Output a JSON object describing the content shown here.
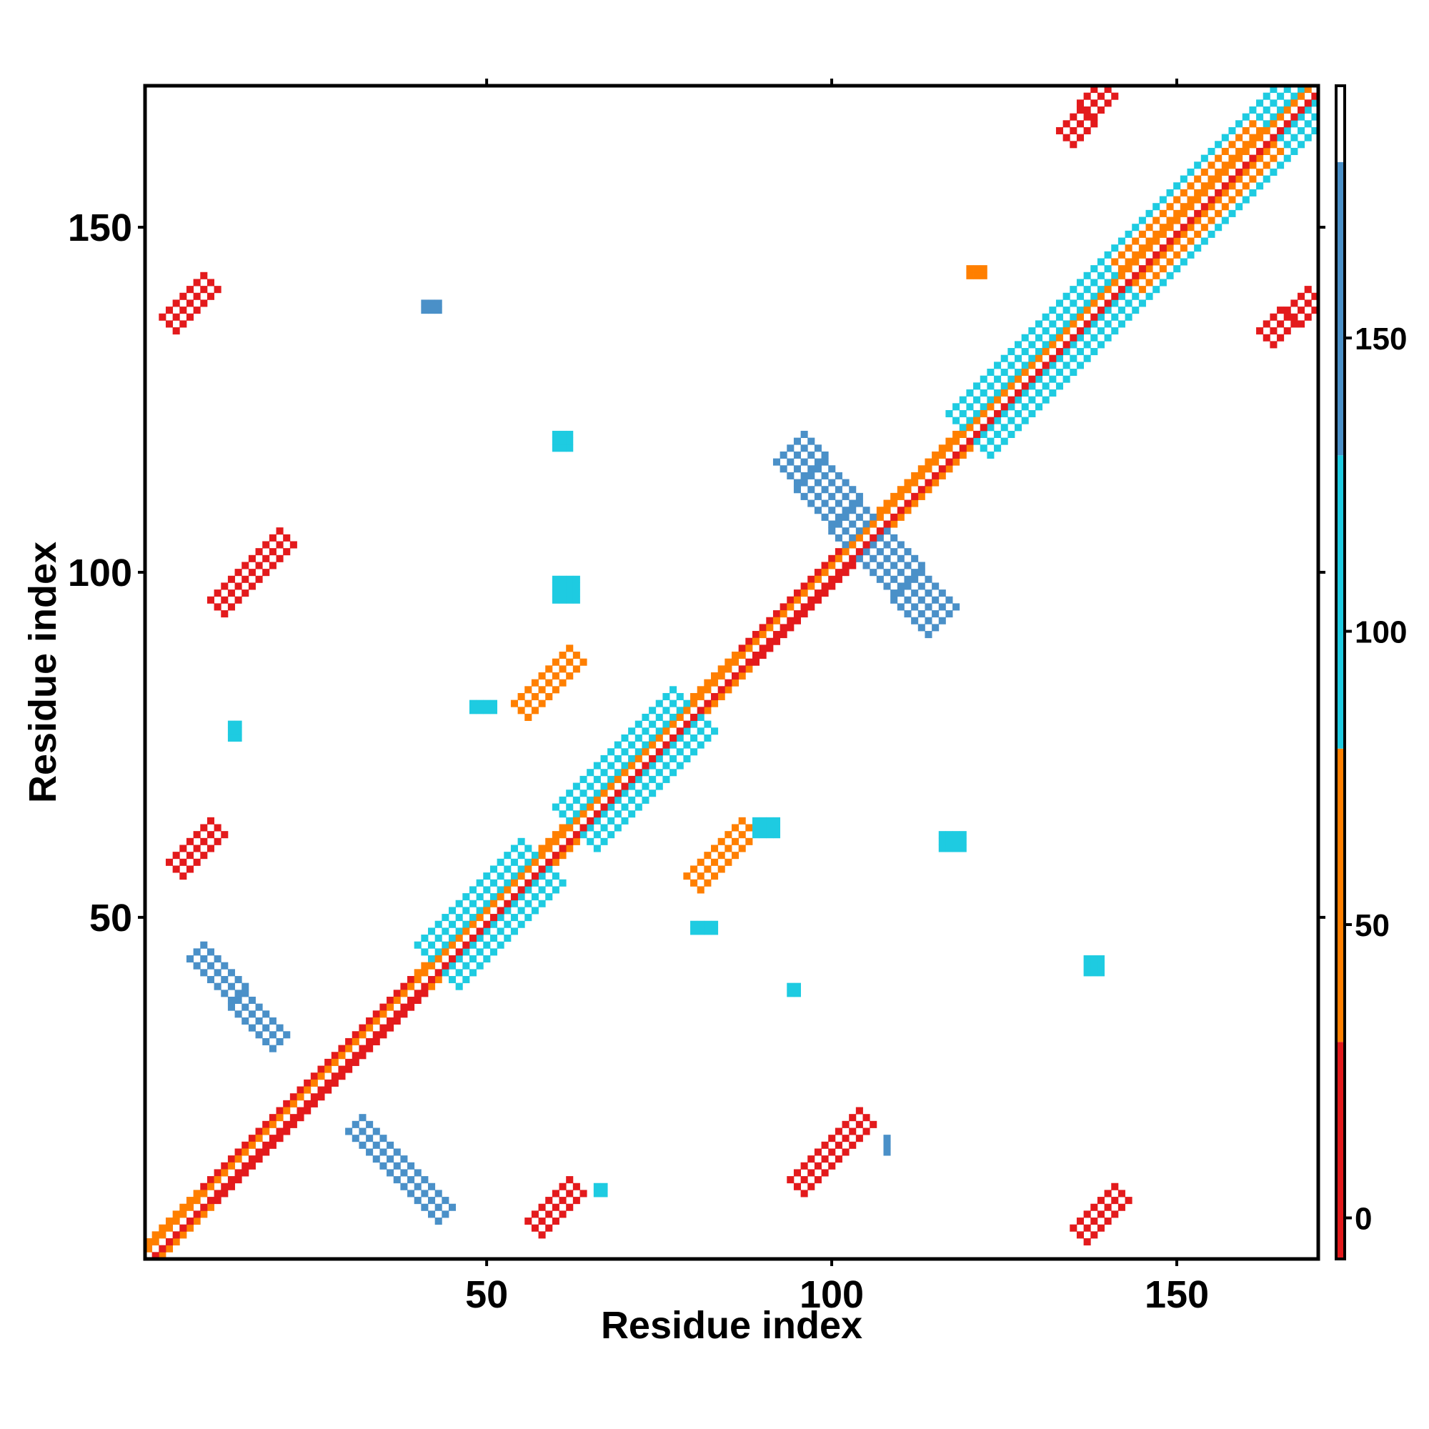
{
  "chart_data": {
    "type": "heatmap",
    "title": "",
    "xlabel": "Residue index",
    "ylabel": "Residue index",
    "xlim": [
      0.5,
      170.5
    ],
    "ylim": [
      0.5,
      170.5
    ],
    "xticks": [
      50,
      100,
      150
    ],
    "yticks": [
      50,
      100,
      150
    ],
    "colorbar": {
      "ticks": [
        0,
        50,
        100,
        150
      ],
      "range": [
        -7,
        193
      ],
      "bands": [
        {
          "from": -7,
          "to": 30,
          "color": "#e31a1c"
        },
        {
          "from": 30,
          "to": 80,
          "color": "#ff7f00"
        },
        {
          "from": 80,
          "to": 130,
          "color": "#1ecbe1"
        },
        {
          "from": 130,
          "to": 180,
          "color": "#4a90c8"
        },
        {
          "from": 180,
          "to": 193,
          "color": "#ffffff"
        }
      ]
    },
    "grid": false,
    "legend": "colorbar-right",
    "features": [
      {
        "kind": "diagonal",
        "from": [
          1,
          1
        ],
        "to": [
          170,
          170
        ],
        "width": 3,
        "value": 40
      },
      {
        "kind": "diagonal",
        "from": [
          2,
          1
        ],
        "to": [
          170,
          169
        ],
        "width": 1,
        "value": 10
      },
      {
        "kind": "diagonal",
        "from": [
          1,
          2
        ],
        "to": [
          169,
          170
        ],
        "width": 1,
        "value": 55
      },
      {
        "kind": "diagonal",
        "from": [
          43,
          43
        ],
        "to": [
          58,
          58
        ],
        "width": 7,
        "value": 100
      },
      {
        "kind": "diagonal",
        "from": [
          63,
          63
        ],
        "to": [
          80,
          80
        ],
        "width": 7,
        "value": 100
      },
      {
        "kind": "diagonal",
        "from": [
          120,
          120
        ],
        "to": [
          170,
          170
        ],
        "width": 6,
        "value": 95
      },
      {
        "kind": "diagonal",
        "from": [
          143,
          143
        ],
        "to": [
          163,
          163
        ],
        "width": 5,
        "value": 55
      },
      {
        "kind": "diagonal",
        "from": [
          88,
          88
        ],
        "to": [
          104,
          104
        ],
        "width": 3,
        "value": 8
      },
      {
        "kind": "diagonal",
        "from": [
          10,
          10
        ],
        "to": [
          40,
          40
        ],
        "width": 2,
        "value": 8
      },
      {
        "kind": "antidiagonal",
        "from": [
          8,
          45
        ],
        "to": [
          20,
          32
        ],
        "width": 3,
        "value": 150
      },
      {
        "kind": "antidiagonal",
        "from": [
          31,
          20
        ],
        "to": [
          44,
          7
        ],
        "width": 3,
        "value": 150
      },
      {
        "kind": "antidiagonal",
        "from": [
          94,
          118
        ],
        "to": [
          104,
          106
        ],
        "width": 4,
        "value": 150
      },
      {
        "kind": "antidiagonal",
        "from": [
          106,
          104
        ],
        "to": [
          116,
          93
        ],
        "width": 4,
        "value": 150
      },
      {
        "kind": "diagonal",
        "from": [
          4,
          136
        ],
        "to": [
          10,
          142
        ],
        "width": 3,
        "value": 8
      },
      {
        "kind": "diagonal",
        "from": [
          136,
          4
        ],
        "to": [
          142,
          10
        ],
        "width": 3,
        "value": 8
      },
      {
        "kind": "diagonal",
        "from": [
          5,
          57
        ],
        "to": [
          11,
          63
        ],
        "width": 3,
        "value": 8
      },
      {
        "kind": "diagonal",
        "from": [
          57,
          5
        ],
        "to": [
          63,
          11
        ],
        "width": 3,
        "value": 8
      },
      {
        "kind": "diagonal",
        "from": [
          11,
          95
        ],
        "to": [
          21,
          105
        ],
        "width": 3,
        "value": 25
      },
      {
        "kind": "diagonal",
        "from": [
          95,
          11
        ],
        "to": [
          105,
          21
        ],
        "width": 3,
        "value": 25
      },
      {
        "kind": "diagonal",
        "from": [
          55,
          80
        ],
        "to": [
          63,
          88
        ],
        "width": 3,
        "value": 45
      },
      {
        "kind": "diagonal",
        "from": [
          80,
          55
        ],
        "to": [
          88,
          63
        ],
        "width": 3,
        "value": 45
      },
      {
        "kind": "diagonal",
        "from": [
          134,
          163
        ],
        "to": [
          137,
          166
        ],
        "width": 2,
        "value": 8
      },
      {
        "kind": "diagonal",
        "from": [
          163,
          134
        ],
        "to": [
          166,
          137
        ],
        "width": 2,
        "value": 8
      },
      {
        "kind": "diagonal",
        "from": [
          167,
          137
        ],
        "to": [
          170,
          140
        ],
        "width": 2,
        "value": 8
      },
      {
        "kind": "diagonal",
        "from": [
          137,
          167
        ],
        "to": [
          140,
          170
        ],
        "width": 2,
        "value": 8
      }
    ],
    "patches": [
      {
        "x": 60,
        "y": 96,
        "w": 4,
        "h": 4,
        "value": 100
      },
      {
        "x": 48,
        "y": 80,
        "w": 4,
        "h": 2,
        "value": 100
      },
      {
        "x": 60,
        "y": 118,
        "w": 3,
        "h": 3,
        "value": 100
      },
      {
        "x": 41,
        "y": 138,
        "w": 3,
        "h": 2,
        "value": 150
      },
      {
        "x": 13,
        "y": 76,
        "w": 2,
        "h": 3,
        "value": 100
      },
      {
        "x": 116,
        "y": 60,
        "w": 4,
        "h": 3,
        "value": 100
      },
      {
        "x": 137,
        "y": 42,
        "w": 3,
        "h": 3,
        "value": 100
      },
      {
        "x": 94,
        "y": 39,
        "w": 2,
        "h": 2,
        "value": 100
      },
      {
        "x": 108,
        "y": 16,
        "w": 1,
        "h": 3,
        "value": 150
      },
      {
        "x": 66,
        "y": 10,
        "w": 2,
        "h": 2,
        "value": 100
      },
      {
        "x": 80,
        "y": 48,
        "w": 4,
        "h": 2,
        "value": 100
      },
      {
        "x": 89,
        "y": 62,
        "w": 4,
        "h": 3,
        "value": 100
      },
      {
        "x": 120,
        "y": 143,
        "w": 3,
        "h": 2,
        "value": 55
      }
    ]
  }
}
